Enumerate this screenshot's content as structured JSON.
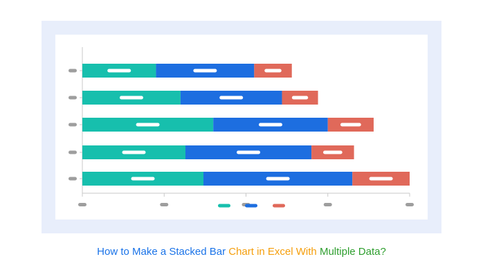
{
  "colors": {
    "frame_bg": "#e8eefb",
    "panel_bg": "#ffffff",
    "placeholder_label": "#9e9e9e",
    "bar_label": "#ffffff",
    "axis": "#c8c8c8"
  },
  "caption": {
    "parts": [
      {
        "text": "How to Make a Stacked Bar ",
        "color": "#1a73e8"
      },
      {
        "text": "Chart in Excel With ",
        "color": "#f59e0b"
      },
      {
        "text": "Multiple Data?",
        "color": "#2e9e2e"
      }
    ]
  },
  "chart_data": {
    "type": "bar",
    "orientation": "horizontal",
    "stacked": true,
    "title": "",
    "xlabel": "",
    "ylabel": "",
    "categories": [
      "",
      "",
      "",
      "",
      ""
    ],
    "xlim": [
      0,
      100
    ],
    "x_ticks": [
      0,
      25,
      50,
      75,
      100
    ],
    "grid": false,
    "legend_position": "bottom",
    "series": [
      {
        "name": "",
        "color": "#17bfad",
        "values": [
          22.5,
          30.0,
          40.0,
          31.5,
          37.0
        ]
      },
      {
        "name": "",
        "color": "#1d6ee0",
        "values": [
          30.0,
          31.0,
          35.0,
          38.5,
          45.5
        ]
      },
      {
        "name": "",
        "color": "#e0695a",
        "values": [
          11.5,
          11.0,
          14.0,
          13.0,
          17.5
        ]
      }
    ]
  }
}
